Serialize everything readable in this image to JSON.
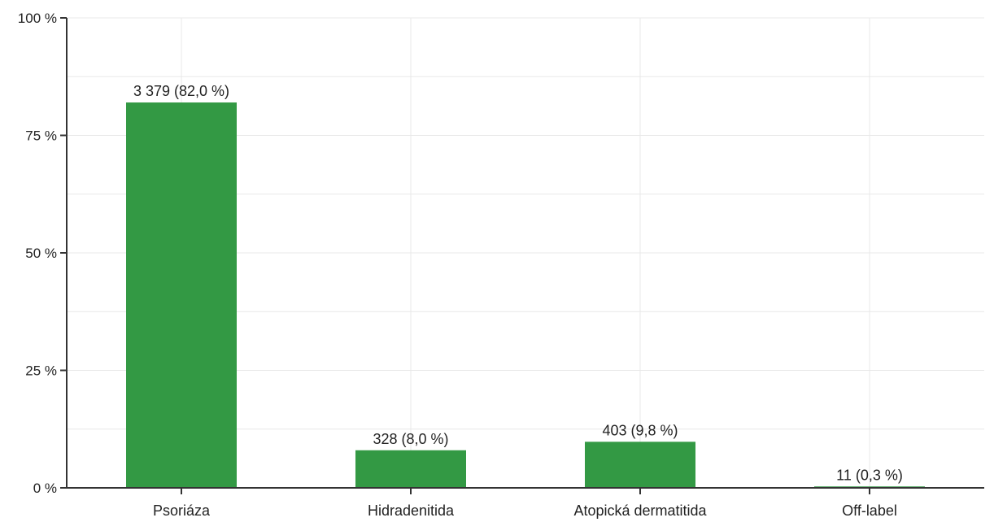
{
  "chart_data": {
    "type": "bar",
    "categories": [
      "Psoriáza",
      "Hidradenitida",
      "Atopická dermatitida",
      "Off-label"
    ],
    "values": [
      82.0,
      8.0,
      9.8,
      0.3
    ],
    "data_labels": [
      "3 379 (82,0 %)",
      "328 (8,0 %)",
      "403 (9,8 %)",
      "11 (0,3 %)"
    ],
    "yticks": [
      0,
      25,
      50,
      75,
      100
    ],
    "ytick_labels": [
      "0 %",
      "25 %",
      "50 %",
      "75 %",
      "100 %"
    ],
    "ylim": [
      0,
      100
    ],
    "title": "",
    "xlabel": "",
    "ylabel": "",
    "grid": true,
    "legend": "none",
    "colors": {
      "bar": "#339944",
      "grid": "#e8e8e8",
      "axis": "#333333",
      "text": "#222222"
    }
  }
}
